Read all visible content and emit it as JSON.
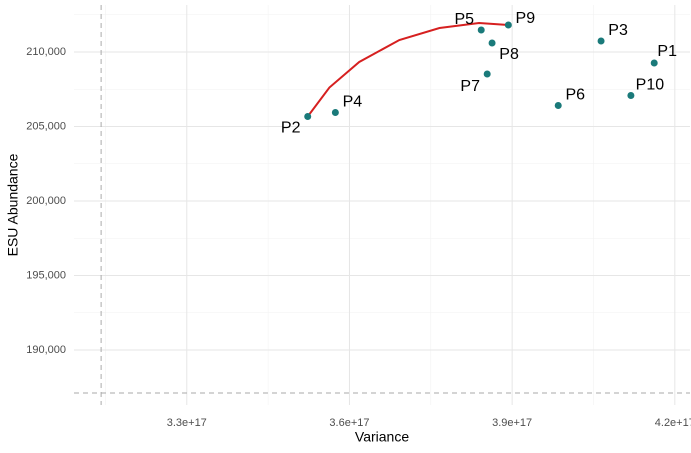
{
  "chart_data": {
    "type": "scatter",
    "x_label": "Variance",
    "y_label": "ESU Abundance",
    "labels": [
      "P1",
      "P2",
      "P3",
      "P4",
      "P5",
      "P6",
      "P7",
      "P8",
      "P9",
      "P10"
    ],
    "x": [
      4.162e+17,
      3.523e+17,
      4.064e+17,
      3.574e+17,
      3.843e+17,
      3.985e+17,
      3.854e+17,
      3.863e+17,
      3.893e+17,
      4.119e+17
    ],
    "y": [
      209262,
      205671,
      210738,
      205940,
      211476,
      206409,
      208523,
      210604,
      211812,
      207080
    ],
    "color": "#1a7a7a",
    "curve": {
      "color": "#d62020",
      "x": [
        3.523e+17,
        3.563e+17,
        3.618e+17,
        3.692e+17,
        3.766e+17,
        3.839e+17,
        3.893e+17
      ],
      "y": [
        205671,
        207617,
        209329,
        210805,
        211611,
        211946,
        211812
      ]
    },
    "vline": 3.142e+17,
    "hline": 187114,
    "xlim": [
      3.092e+17,
      4.228e+17
    ],
    "ylim": [
      186309,
      213154
    ],
    "xticks": [
      {
        "value": 3.3e+17,
        "label": "3.3e+17"
      },
      {
        "value": 3.6e+17,
        "label": "3.6e+17"
      },
      {
        "value": 3.9e+17,
        "label": "3.9e+17"
      },
      {
        "value": 4.2e+17,
        "label": "4.2e+17"
      }
    ],
    "yticks": [
      {
        "value": 190000,
        "label": "190,000"
      },
      {
        "value": 195000,
        "label": "195,000"
      },
      {
        "value": 200000,
        "label": "200,000"
      },
      {
        "value": 205000,
        "label": "205,000"
      },
      {
        "value": 210000,
        "label": "210,000"
      }
    ],
    "grid": true
  }
}
